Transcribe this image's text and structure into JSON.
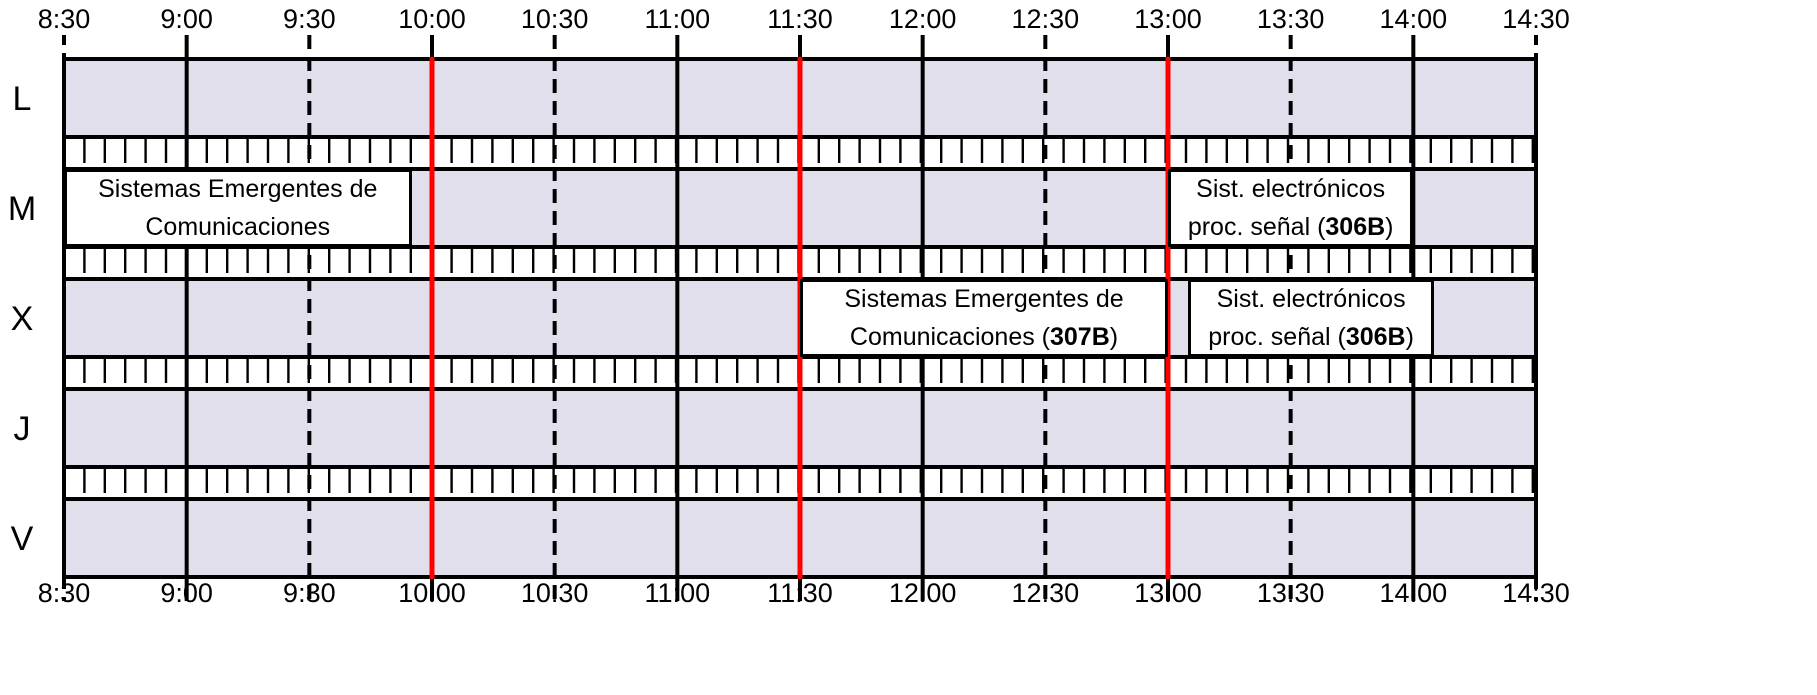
{
  "timeline": {
    "ticks": [
      "8:30",
      "9:00",
      "9:30",
      "10:00",
      "10:30",
      "11:00",
      "11:30",
      "12:00",
      "12:30",
      "13:00",
      "13:30",
      "14:00",
      "14:30"
    ],
    "start_minutes": 510,
    "end_minutes": 870,
    "major_break_ticks": [
      "10:00",
      "11:30",
      "13:00"
    ]
  },
  "days": [
    "L",
    "M",
    "X",
    "J",
    "V"
  ],
  "events": [
    {
      "day": "M",
      "start": "8:30",
      "end": "9:55",
      "lines": [
        "Sistemas Emergentes de",
        "Comunicaciones"
      ],
      "room": "",
      "room_suffix": ""
    },
    {
      "day": "M",
      "start": "13:00",
      "end": "14:00",
      "lines": [
        "Sist. electrónicos",
        "proc. señal ("
      ],
      "room": "306B",
      "room_suffix": ")"
    },
    {
      "day": "X",
      "start": "11:30",
      "end": "13:00",
      "lines": [
        "Sistemas Emergentes de",
        "Comunicaciones ("
      ],
      "room": "307B",
      "room_suffix": ")"
    },
    {
      "day": "X",
      "start": "13:05",
      "end": "14:05",
      "lines": [
        "Sist. electrónicos",
        "proc. señal ("
      ],
      "room": "306B",
      "room_suffix": ")"
    }
  ],
  "colors": {
    "row_fill": "#e1dfec",
    "break_fill": "#ffffff",
    "grid": "#000000",
    "major_line": "#ff0000",
    "event_fill": "#ffffff"
  }
}
